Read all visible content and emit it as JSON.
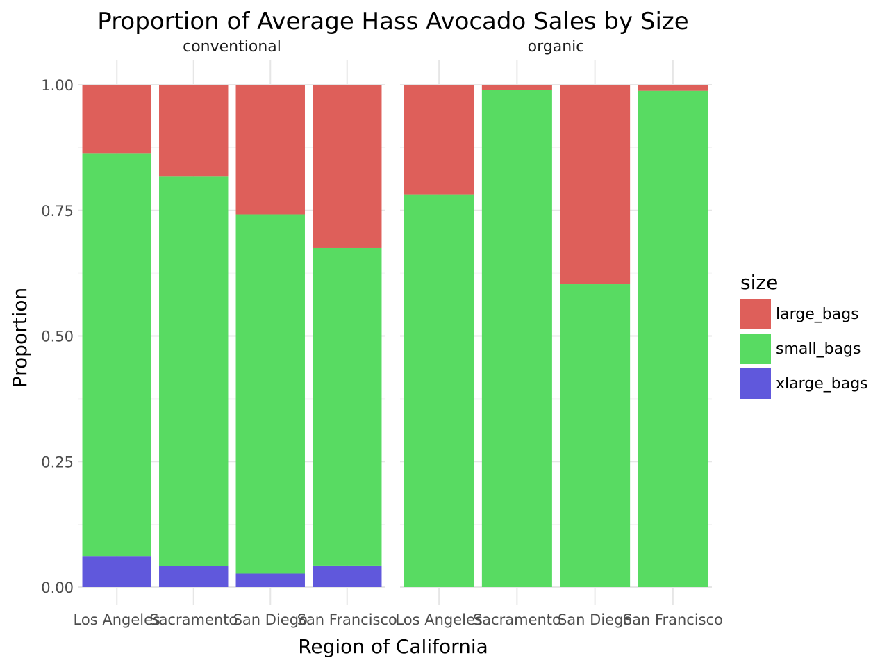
{
  "chart_data": {
    "type": "bar",
    "stacked": true,
    "title": "Proportion of Average Hass Avocado Sales by Size",
    "xlabel": "Region of California",
    "ylabel": "Proportion",
    "ylim": [
      0,
      1
    ],
    "yticks": [
      "0.00",
      "0.25",
      "0.50",
      "0.75",
      "1.00"
    ],
    "grid": true,
    "legend_position": "right",
    "legend": {
      "title": "size",
      "entries": [
        {
          "name": "large_bags",
          "color": "#DE5F5A"
        },
        {
          "name": "small_bags",
          "color": "#58DB62"
        },
        {
          "name": "xlarge_bags",
          "color": "#6058DC"
        }
      ]
    },
    "categories": [
      "Los Angeles",
      "Sacramento",
      "San Diego",
      "San Francisco"
    ],
    "panels": [
      {
        "label": "conventional",
        "series": [
          {
            "name": "xlarge_bags",
            "values": [
              0.062,
              0.042,
              0.027,
              0.043
            ]
          },
          {
            "name": "small_bags",
            "values": [
              0.802,
              0.775,
              0.715,
              0.632
            ]
          },
          {
            "name": "large_bags",
            "values": [
              0.136,
              0.183,
              0.258,
              0.325
            ]
          }
        ]
      },
      {
        "label": "organic",
        "series": [
          {
            "name": "xlarge_bags",
            "values": [
              0.0,
              0.0,
              0.0,
              0.0
            ]
          },
          {
            "name": "small_bags",
            "values": [
              0.782,
              0.99,
              0.603,
              0.988
            ]
          },
          {
            "name": "large_bags",
            "values": [
              0.218,
              0.01,
              0.397,
              0.012
            ]
          }
        ]
      }
    ]
  }
}
